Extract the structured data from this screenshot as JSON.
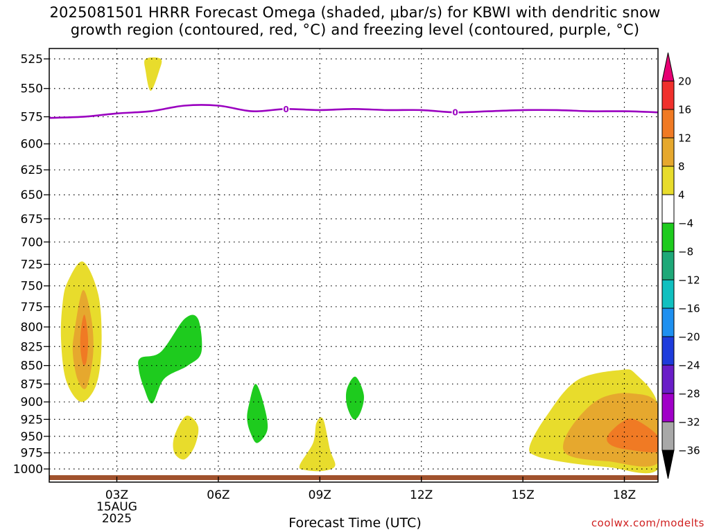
{
  "title": {
    "line1": "2025081501 HRRR Forecast Omega (shaded, μbar/s) for KBWI with dendritic snow",
    "line2": "growth region (contoured, red, °C) and freezing level (contoured, purple, °C)"
  },
  "credit": "coolwx.com/modelts",
  "chart_data": {
    "type": "heatmap",
    "title": "2025081501 HRRR Forecast Omega (shaded, μbar/s) for KBWI with dendritic snow growth region (contoured, red, °C) and freezing level (contoured, purple, °C)",
    "xlabel": "Forecast Time (UTC)",
    "ylabel": "",
    "x_hours_range": [
      1,
      19
    ],
    "y_pressure_range": [
      525,
      1000
    ],
    "y_scale": "log",
    "x_ticks": [
      {
        "hour": 3,
        "label": "03Z",
        "sub1": "15AUG",
        "sub2": "2025"
      },
      {
        "hour": 6,
        "label": "06Z"
      },
      {
        "hour": 9,
        "label": "09Z"
      },
      {
        "hour": 12,
        "label": "12Z"
      },
      {
        "hour": 15,
        "label": "15Z"
      },
      {
        "hour": 18,
        "label": "18Z"
      }
    ],
    "y_ticks": [
      525,
      550,
      575,
      600,
      625,
      650,
      675,
      700,
      725,
      750,
      775,
      800,
      825,
      850,
      875,
      900,
      925,
      950,
      975,
      1000
    ],
    "grid": true,
    "colorbar": {
      "labels": [
        "20",
        "16",
        "12",
        "8",
        "4",
        "−4",
        "−8",
        "−12",
        "−16",
        "−20",
        "−24",
        "−28",
        "−32",
        "−36"
      ],
      "colors_top_to_bottom": [
        "#e60073",
        "#f0302c",
        "#f07a24",
        "#e6a82e",
        "#e8dc2c",
        "#ffffff",
        "#1ecb1e",
        "#1ea878",
        "#10c0c0",
        "#1e90f0",
        "#1e3cdc",
        "#6a1ec8",
        "#a000c8",
        "#a8a8a8",
        "#000000"
      ]
    },
    "omega_regions": [
      {
        "level": "4 to 8",
        "color": "#e8dc2c",
        "polygon": [
          [
            3.85,
            525
          ],
          [
            4.3,
            525
          ],
          [
            4.25,
            535
          ],
          [
            4.0,
            552
          ],
          [
            3.85,
            535
          ]
        ]
      },
      {
        "level": "4 to 8",
        "color": "#e8dc2c",
        "polygon": [
          [
            1.55,
            745
          ],
          [
            2.0,
            722
          ],
          [
            2.45,
            760
          ],
          [
            2.55,
            820
          ],
          [
            2.4,
            875
          ],
          [
            1.95,
            900
          ],
          [
            1.5,
            870
          ],
          [
            1.35,
            815
          ],
          [
            1.4,
            770
          ]
        ]
      },
      {
        "level": "8 to 12",
        "color": "#e6a82e",
        "polygon": [
          [
            1.75,
            805
          ],
          [
            2.0,
            755
          ],
          [
            2.25,
            790
          ],
          [
            2.3,
            835
          ],
          [
            2.1,
            880
          ],
          [
            1.85,
            870
          ],
          [
            1.7,
            835
          ]
        ]
      },
      {
        "level": "12 to 16",
        "color": "#f07a24",
        "polygon": [
          [
            1.95,
            800
          ],
          [
            2.05,
            785
          ],
          [
            2.15,
            815
          ],
          [
            2.1,
            845
          ],
          [
            2.0,
            848
          ],
          [
            1.92,
            825
          ]
        ]
      },
      {
        "level": "-4 to -8",
        "color": "#1ecb1e",
        "polygon": [
          [
            3.7,
            840
          ],
          [
            4.3,
            832
          ],
          [
            5.0,
            790
          ],
          [
            5.4,
            790
          ],
          [
            5.5,
            832
          ],
          [
            5.1,
            850
          ],
          [
            4.4,
            868
          ],
          [
            4.05,
            902
          ],
          [
            3.8,
            880
          ],
          [
            3.65,
            855
          ]
        ]
      },
      {
        "level": "-4 to -8",
        "color": "#1ecb1e",
        "polygon": [
          [
            6.9,
            905
          ],
          [
            7.1,
            875
          ],
          [
            7.35,
            905
          ],
          [
            7.45,
            940
          ],
          [
            7.15,
            960
          ],
          [
            6.95,
            945
          ],
          [
            6.85,
            925
          ]
        ]
      },
      {
        "level": "-4 to -8",
        "color": "#1ecb1e",
        "polygon": [
          [
            9.8,
            882
          ],
          [
            10.05,
            865
          ],
          [
            10.3,
            890
          ],
          [
            10.2,
            915
          ],
          [
            10.0,
            925
          ],
          [
            9.8,
            905
          ]
        ]
      },
      {
        "level": "4 to 8",
        "color": "#e8dc2c",
        "polygon": [
          [
            4.7,
            950
          ],
          [
            5.05,
            920
          ],
          [
            5.4,
            935
          ],
          [
            5.3,
            965
          ],
          [
            5.0,
            985
          ],
          [
            4.7,
            975
          ]
        ]
      },
      {
        "level": "4 to 8",
        "color": "#e8dc2c",
        "polygon": [
          [
            8.4,
            995
          ],
          [
            8.8,
            960
          ],
          [
            8.9,
            930
          ],
          [
            9.1,
            925
          ],
          [
            9.3,
            970
          ],
          [
            9.45,
            995
          ],
          [
            9.1,
            1003
          ],
          [
            8.6,
            1002
          ]
        ]
      },
      {
        "level": "4 to 8",
        "color": "#e8dc2c",
        "polygon": [
          [
            15.2,
            965
          ],
          [
            15.7,
            920
          ],
          [
            16.6,
            870
          ],
          [
            17.9,
            856
          ],
          [
            18.35,
            862
          ],
          [
            19,
            905
          ],
          [
            19,
            1000
          ],
          [
            17.5,
            997
          ],
          [
            16.3,
            990
          ],
          [
            15.4,
            980
          ]
        ]
      },
      {
        "level": "8 to 12",
        "color": "#e6a82e",
        "polygon": [
          [
            16.2,
            960
          ],
          [
            16.6,
            925
          ],
          [
            17.3,
            895
          ],
          [
            18.2,
            888
          ],
          [
            19,
            905
          ],
          [
            19,
            990
          ],
          [
            17.5,
            988
          ],
          [
            16.4,
            980
          ]
        ]
      },
      {
        "level": "12 to 16",
        "color": "#f07a24",
        "polygon": [
          [
            17.5,
            950
          ],
          [
            17.9,
            930
          ],
          [
            18.3,
            925
          ],
          [
            19,
            950
          ],
          [
            19,
            973
          ],
          [
            18.1,
            970
          ],
          [
            17.6,
            963
          ]
        ]
      }
    ],
    "freezing_level_0C": {
      "color": "#9a00c0",
      "label": "0",
      "points": [
        [
          1,
          576
        ],
        [
          2,
          575
        ],
        [
          3,
          572
        ],
        [
          4,
          570
        ],
        [
          5,
          565
        ],
        [
          6,
          565
        ],
        [
          7,
          570
        ],
        [
          8,
          568
        ],
        [
          9,
          569
        ],
        [
          10,
          568
        ],
        [
          11,
          569
        ],
        [
          12,
          569
        ],
        [
          13,
          571
        ],
        [
          14,
          570
        ],
        [
          15,
          569
        ],
        [
          16,
          569
        ],
        [
          17,
          570
        ],
        [
          18,
          570
        ],
        [
          19,
          571
        ]
      ],
      "label_hours": [
        8,
        13
      ]
    },
    "surface_band": {
      "color": "#a0522d",
      "pressure": 1005
    }
  }
}
